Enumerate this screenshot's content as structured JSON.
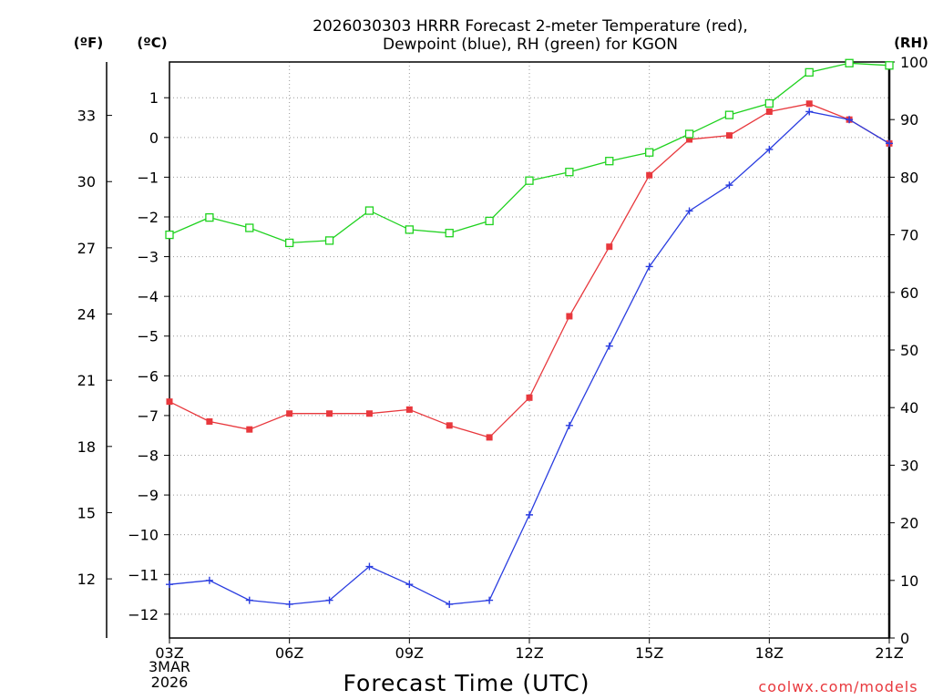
{
  "chart_data": {
    "type": "line",
    "title_line1": "2026030303 HRRR Forecast 2-meter Temperature (red),",
    "title_line2": "Dewpoint (blue), RH (green) for KGON",
    "xlabel": "Forecast Time (UTC)",
    "credit": "coolwx.com/models",
    "unit_f": "(ºF)",
    "unit_c": "(ºC)",
    "unit_rh": "(RH)",
    "x_tick_labels": [
      "03Z",
      "06Z",
      "09Z",
      "12Z",
      "15Z",
      "18Z",
      "21Z"
    ],
    "x_tick_hours": [
      3,
      6,
      9,
      12,
      15,
      18,
      21
    ],
    "date_label_line1": "3MAR",
    "date_label_line2": "2026",
    "x": [
      3,
      4,
      5,
      6,
      7,
      8,
      9,
      10,
      11,
      12,
      13,
      14,
      15,
      16,
      17,
      18,
      19,
      20,
      21
    ],
    "xlim": [
      3,
      21
    ],
    "c_ylim": [
      -12.6,
      1.9
    ],
    "c_ticks": [
      1,
      0,
      -1,
      -2,
      -3,
      -4,
      -5,
      -6,
      -7,
      -8,
      -9,
      -10,
      -11,
      -12
    ],
    "f_ticks": [
      33,
      30,
      27,
      24,
      21,
      18,
      15,
      12
    ],
    "rh_ylim": [
      0,
      100
    ],
    "rh_ticks": [
      0,
      10,
      20,
      30,
      40,
      50,
      60,
      70,
      80,
      90,
      100
    ],
    "series": [
      {
        "name": "Temperature",
        "axis": "c",
        "color": "#e8383d",
        "marker": "filled-square",
        "values": [
          -6.65,
          -7.15,
          -7.35,
          -6.95,
          -6.95,
          -6.95,
          -6.85,
          -7.25,
          -7.55,
          -6.55,
          -4.5,
          -2.75,
          -0.95,
          -0.05,
          0.05,
          0.65,
          0.85,
          0.45,
          -0.15
        ]
      },
      {
        "name": "Dewpoint",
        "axis": "c",
        "color": "#2a3de0",
        "marker": "plus",
        "values": [
          -11.25,
          -11.15,
          -11.65,
          -11.75,
          -11.65,
          -10.8,
          -11.25,
          -11.75,
          -11.65,
          -9.5,
          -7.25,
          -5.25,
          -3.25,
          -1.85,
          -1.2,
          -0.3,
          0.65,
          0.45,
          -0.15
        ]
      },
      {
        "name": "RH",
        "axis": "rh",
        "color": "#1fd21f",
        "marker": "open-square",
        "values": [
          70,
          73,
          71.2,
          68.6,
          69,
          74.2,
          70.9,
          70.3,
          72.4,
          79.4,
          80.9,
          82.8,
          84.3,
          87.5,
          90.8,
          92.8,
          98.2,
          99.8,
          99.4
        ]
      }
    ]
  }
}
